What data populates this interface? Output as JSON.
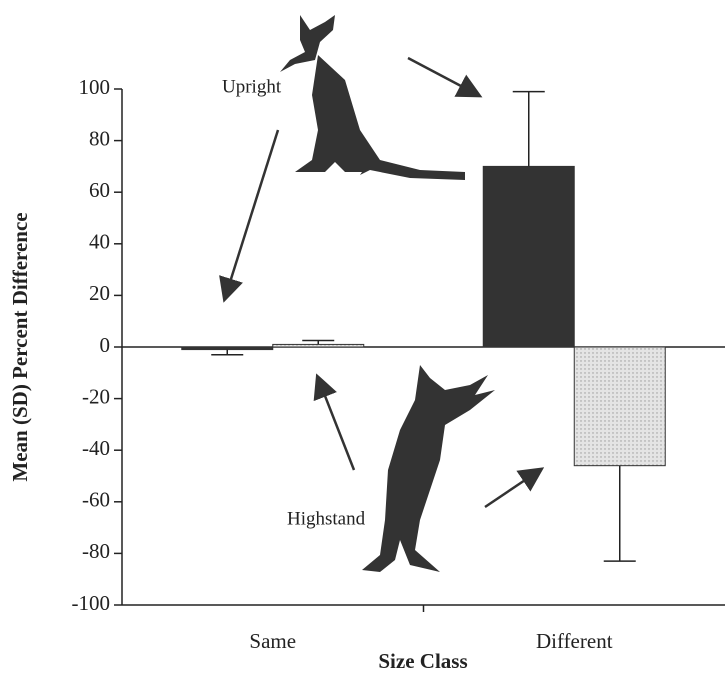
{
  "chart_data": {
    "type": "bar",
    "x_label": "Size Class",
    "y_label": "Mean (SD) Percent Difference",
    "categories": [
      "Same",
      "Different"
    ],
    "series": [
      {
        "name": "Upright",
        "color": "#333333",
        "values": [
          -1,
          70
        ],
        "errors": [
          2,
          29
        ]
      },
      {
        "name": "Highstand",
        "color": "#dcdcdc",
        "values": [
          1,
          -46
        ],
        "errors": [
          1.5,
          37
        ]
      }
    ],
    "ylim": [
      -100,
      100
    ],
    "yticks": [
      -100,
      -80,
      -60,
      -40,
      -20,
      0,
      20,
      40,
      60,
      80,
      100
    ],
    "grid": false
  }
}
